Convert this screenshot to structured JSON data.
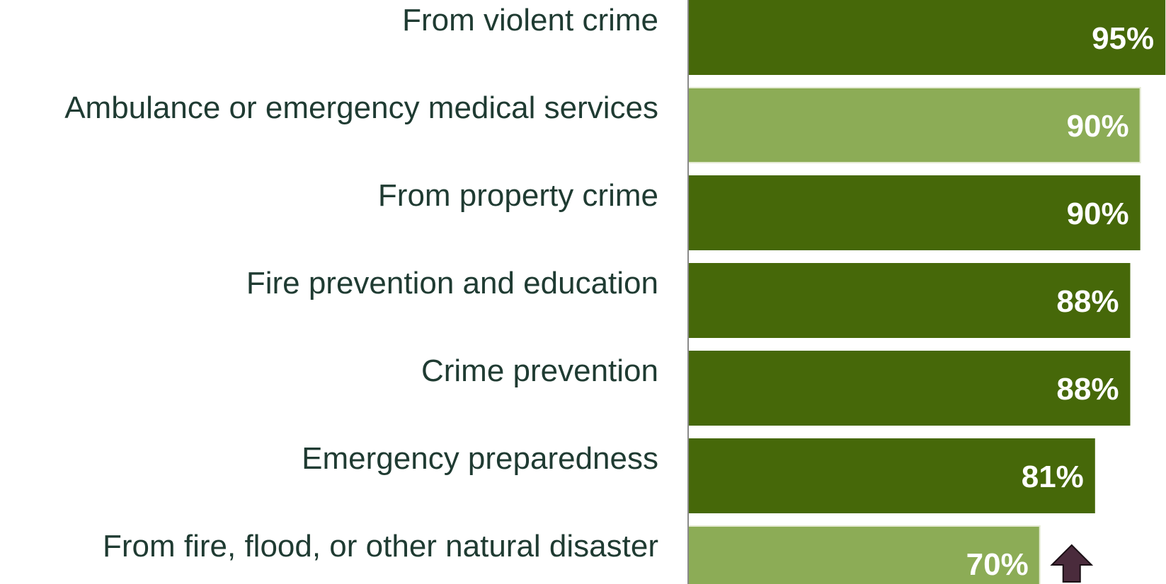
{
  "chart_data": {
    "type": "bar",
    "orientation": "horizontal",
    "categories": [
      "From violent crime",
      "Ambulance or emergency medical services",
      "From property crime",
      "Fire prevention and education",
      "Crime prevention",
      "Emergency preparedness",
      "From fire, flood, or other natural disaster"
    ],
    "values": [
      95,
      90,
      90,
      88,
      88,
      81,
      70
    ],
    "value_labels": [
      "95%",
      "90%",
      "90%",
      "88%",
      "88%",
      "81%",
      "70%"
    ],
    "highlighted": [
      false,
      true,
      false,
      false,
      false,
      false,
      true
    ],
    "annotations": [
      {
        "category": "From fire, flood, or other natural disaster",
        "icon": "up-arrow-icon"
      }
    ],
    "xlim": [
      0,
      100
    ],
    "title": "",
    "xlabel": "",
    "ylabel": "",
    "grid": false,
    "legend": "none",
    "colors": {
      "bar": "#466809",
      "bar_highlight": "#8cac56",
      "arrow": "#4a2b3c",
      "label_text": "#1f3b32",
      "value_text": "#ffffff",
      "axis": "#8a8a8a"
    }
  }
}
